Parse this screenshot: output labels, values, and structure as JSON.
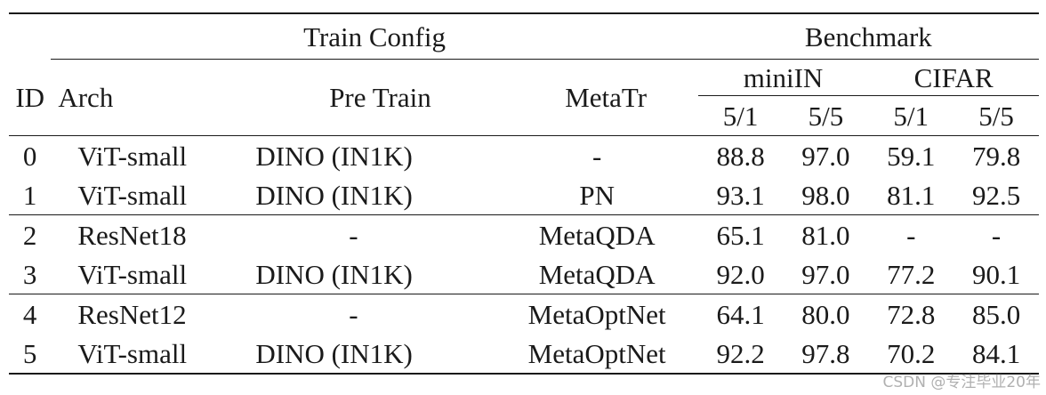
{
  "header": {
    "train_config": "Train Config",
    "benchmark": "Benchmark",
    "id": "ID",
    "arch": "Arch",
    "pre_train": "Pre Train",
    "meta_tr": "MetaTr",
    "mini_in": "miniIN",
    "cifar": "CIFAR",
    "shots": [
      "5/1",
      "5/5",
      "5/1",
      "5/5"
    ]
  },
  "rows": [
    {
      "id": "0",
      "arch": "ViT-small",
      "pre": "DINO (IN1K)",
      "meta": "-",
      "v": [
        "88.8",
        "97.0",
        "59.1",
        "79.8"
      ]
    },
    {
      "id": "1",
      "arch": "ViT-small",
      "pre": "DINO (IN1K)",
      "meta": "PN",
      "v": [
        "93.1",
        "98.0",
        "81.1",
        "92.5"
      ]
    },
    {
      "id": "2",
      "arch": "ResNet18",
      "pre": "-",
      "meta": "MetaQDA",
      "v": [
        "65.1",
        "81.0",
        "-",
        "-"
      ]
    },
    {
      "id": "3",
      "arch": "ViT-small",
      "pre": "DINO (IN1K)",
      "meta": "MetaQDA",
      "v": [
        "92.0",
        "97.0",
        "77.2",
        "90.1"
      ]
    },
    {
      "id": "4",
      "arch": "ResNet12",
      "pre": "-",
      "meta": "MetaOptNet",
      "v": [
        "64.1",
        "80.0",
        "72.8",
        "85.0"
      ]
    },
    {
      "id": "5",
      "arch": "ViT-small",
      "pre": "DINO (IN1K)",
      "meta": "MetaOptNet",
      "v": [
        "92.2",
        "97.8",
        "70.2",
        "84.1"
      ]
    }
  ],
  "watermark": "CSDN @专注毕业20年"
}
